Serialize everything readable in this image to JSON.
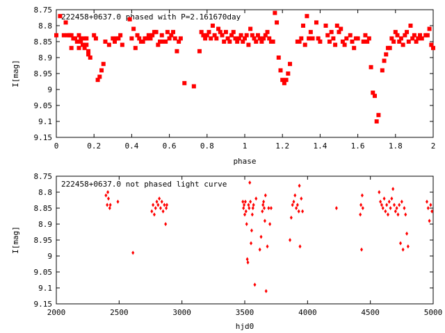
{
  "chart_data": [
    {
      "type": "scatter",
      "title": "222458+0637.0 phased with P=2.161670day",
      "xlabel": "phase",
      "ylabel": "I[mag]",
      "xlim": [
        0,
        2
      ],
      "ylim": [
        9.15,
        8.75
      ],
      "y_inverted": true,
      "xticks": [
        "0",
        "0.2",
        "0.4",
        "0.6",
        "0.8",
        "1",
        "1.2",
        "1.4",
        "1.6",
        "1.8",
        "2"
      ],
      "yticks": [
        "8.75",
        "8.8",
        "8.85",
        "8.9",
        "8.95",
        "9",
        "9.05",
        "9.1",
        "9.15"
      ],
      "grid": false,
      "marker": "filled square",
      "color": "#ff0000",
      "points": [
        [
          0.0,
          8.83
        ],
        [
          0.02,
          8.77
        ],
        [
          0.04,
          8.83
        ],
        [
          0.05,
          8.79
        ],
        [
          0.06,
          8.83
        ],
        [
          0.07,
          8.83
        ],
        [
          0.08,
          8.83
        ],
        [
          0.08,
          8.87
        ],
        [
          0.09,
          8.84
        ],
        [
          0.1,
          8.84
        ],
        [
          0.11,
          8.85
        ],
        [
          0.12,
          8.87
        ],
        [
          0.12,
          8.83
        ],
        [
          0.13,
          8.84
        ],
        [
          0.13,
          8.85
        ],
        [
          0.14,
          8.86
        ],
        [
          0.15,
          8.84
        ],
        [
          0.15,
          8.87
        ],
        [
          0.16,
          8.84
        ],
        [
          0.16,
          8.86
        ],
        [
          0.17,
          8.88
        ],
        [
          0.17,
          8.89
        ],
        [
          0.18,
          8.9
        ],
        [
          0.2,
          8.83
        ],
        [
          0.21,
          8.84
        ],
        [
          0.22,
          8.97
        ],
        [
          0.23,
          8.96
        ],
        [
          0.24,
          8.94
        ],
        [
          0.25,
          8.92
        ],
        [
          0.26,
          8.85
        ],
        [
          0.28,
          8.86
        ],
        [
          0.3,
          8.84
        ],
        [
          0.31,
          8.85
        ],
        [
          0.32,
          8.84
        ],
        [
          0.33,
          8.84
        ],
        [
          0.34,
          8.83
        ],
        [
          0.35,
          8.86
        ],
        [
          0.39,
          8.78
        ],
        [
          0.4,
          8.84
        ],
        [
          0.41,
          8.81
        ],
        [
          0.42,
          8.87
        ],
        [
          0.43,
          8.83
        ],
        [
          0.44,
          8.84
        ],
        [
          0.45,
          8.85
        ],
        [
          0.46,
          8.85
        ],
        [
          0.47,
          8.84
        ],
        [
          0.48,
          8.84
        ],
        [
          0.49,
          8.83
        ],
        [
          0.5,
          8.84
        ],
        [
          0.51,
          8.83
        ],
        [
          0.52,
          8.82
        ],
        [
          0.53,
          8.82
        ],
        [
          0.54,
          8.86
        ],
        [
          0.55,
          8.85
        ],
        [
          0.56,
          8.83
        ],
        [
          0.57,
          8.85
        ],
        [
          0.58,
          8.85
        ],
        [
          0.59,
          8.82
        ],
        [
          0.6,
          8.84
        ],
        [
          0.61,
          8.83
        ],
        [
          0.62,
          8.82
        ],
        [
          0.63,
          8.84
        ],
        [
          0.64,
          8.88
        ],
        [
          0.65,
          8.85
        ],
        [
          0.66,
          8.84
        ],
        [
          0.68,
          8.98
        ],
        [
          0.73,
          8.99
        ],
        [
          0.76,
          8.88
        ],
        [
          0.77,
          8.82
        ],
        [
          0.78,
          8.83
        ],
        [
          0.79,
          8.84
        ],
        [
          0.8,
          8.83
        ],
        [
          0.81,
          8.82
        ],
        [
          0.82,
          8.84
        ],
        [
          0.83,
          8.8
        ],
        [
          0.84,
          8.83
        ],
        [
          0.85,
          8.84
        ],
        [
          0.86,
          8.81
        ],
        [
          0.87,
          8.82
        ],
        [
          0.88,
          8.83
        ],
        [
          0.89,
          8.85
        ],
        [
          0.9,
          8.82
        ],
        [
          0.91,
          8.84
        ],
        [
          0.92,
          8.85
        ],
        [
          0.93,
          8.83
        ],
        [
          0.94,
          8.82
        ],
        [
          0.95,
          8.84
        ],
        [
          0.96,
          8.85
        ],
        [
          0.97,
          8.84
        ],
        [
          0.98,
          8.83
        ],
        [
          0.99,
          8.85
        ],
        [
          1.0,
          8.84
        ],
        [
          1.01,
          8.83
        ],
        [
          1.02,
          8.86
        ],
        [
          1.03,
          8.81
        ],
        [
          1.04,
          8.83
        ],
        [
          1.05,
          8.84
        ],
        [
          1.06,
          8.85
        ],
        [
          1.07,
          8.83
        ],
        [
          1.08,
          8.84
        ],
        [
          1.09,
          8.85
        ],
        [
          1.1,
          8.84
        ],
        [
          1.11,
          8.83
        ],
        [
          1.12,
          8.82
        ],
        [
          1.13,
          8.84
        ],
        [
          1.14,
          8.85
        ],
        [
          1.15,
          8.85
        ],
        [
          1.16,
          8.76
        ],
        [
          1.17,
          8.79
        ],
        [
          1.18,
          8.9
        ],
        [
          1.19,
          8.94
        ],
        [
          1.2,
          8.97
        ],
        [
          1.21,
          8.98
        ],
        [
          1.22,
          8.97
        ],
        [
          1.23,
          8.95
        ],
        [
          1.24,
          8.92
        ],
        [
          1.28,
          8.85
        ],
        [
          1.29,
          8.85
        ],
        [
          1.3,
          8.84
        ],
        [
          1.31,
          8.8
        ],
        [
          1.32,
          8.86
        ],
        [
          1.33,
          8.77
        ],
        [
          1.34,
          8.84
        ],
        [
          1.35,
          8.82
        ],
        [
          1.36,
          8.84
        ],
        [
          1.38,
          8.79
        ],
        [
          1.39,
          8.84
        ],
        [
          1.4,
          8.85
        ],
        [
          1.43,
          8.8
        ],
        [
          1.44,
          8.83
        ],
        [
          1.45,
          8.85
        ],
        [
          1.46,
          8.82
        ],
        [
          1.47,
          8.84
        ],
        [
          1.48,
          8.86
        ],
        [
          1.49,
          8.8
        ],
        [
          1.5,
          8.82
        ],
        [
          1.51,
          8.81
        ],
        [
          1.52,
          8.85
        ],
        [
          1.53,
          8.86
        ],
        [
          1.54,
          8.84
        ],
        [
          1.56,
          8.83
        ],
        [
          1.57,
          8.85
        ],
        [
          1.58,
          8.87
        ],
        [
          1.59,
          8.84
        ],
        [
          1.6,
          8.84
        ],
        [
          1.63,
          8.85
        ],
        [
          1.64,
          8.83
        ],
        [
          1.65,
          8.85
        ],
        [
          1.66,
          8.84
        ],
        [
          1.67,
          8.93
        ],
        [
          1.68,
          9.01
        ],
        [
          1.69,
          9.02
        ],
        [
          1.7,
          9.1
        ],
        [
          1.71,
          9.08
        ],
        [
          1.73,
          8.94
        ],
        [
          1.74,
          8.91
        ],
        [
          1.75,
          8.89
        ],
        [
          1.76,
          8.87
        ],
        [
          1.77,
          8.87
        ],
        [
          1.78,
          8.84
        ],
        [
          1.79,
          8.85
        ],
        [
          1.8,
          8.82
        ],
        [
          1.81,
          8.83
        ],
        [
          1.82,
          8.85
        ],
        [
          1.83,
          8.84
        ],
        [
          1.84,
          8.86
        ],
        [
          1.85,
          8.83
        ],
        [
          1.86,
          8.82
        ],
        [
          1.87,
          8.85
        ],
        [
          1.88,
          8.8
        ],
        [
          1.89,
          8.84
        ],
        [
          1.9,
          8.83
        ],
        [
          1.91,
          8.85
        ],
        [
          1.92,
          8.84
        ],
        [
          1.93,
          8.83
        ],
        [
          1.94,
          8.84
        ],
        [
          1.96,
          8.83
        ],
        [
          1.97,
          8.83
        ],
        [
          1.98,
          8.81
        ],
        [
          1.99,
          8.86
        ],
        [
          2.0,
          8.87
        ]
      ]
    },
    {
      "type": "scatter",
      "title": "222458+0637.0 not phased light curve",
      "xlabel": "hjd0",
      "ylabel": "I[mag]",
      "xlim": [
        2000,
        5000
      ],
      "ylim": [
        9.15,
        8.75
      ],
      "y_inverted": true,
      "xticks": [
        "2000",
        "2500",
        "3000",
        "3500",
        "4000",
        "4500",
        "5000"
      ],
      "yticks": [
        "8.75",
        "8.8",
        "8.85",
        "8.9",
        "8.95",
        "9",
        "9.05",
        "9.1",
        "9.15"
      ],
      "grid": false,
      "marker": "small diamond",
      "color": "#ff0000",
      "points": [
        [
          2395,
          8.81
        ],
        [
          2405,
          8.84
        ],
        [
          2410,
          8.8
        ],
        [
          2415,
          8.82
        ],
        [
          2425,
          8.85
        ],
        [
          2430,
          8.84
        ],
        [
          2490,
          8.83
        ],
        [
          2610,
          8.99
        ],
        [
          2760,
          8.86
        ],
        [
          2770,
          8.84
        ],
        [
          2780,
          8.87
        ],
        [
          2790,
          8.85
        ],
        [
          2800,
          8.83
        ],
        [
          2810,
          8.84
        ],
        [
          2820,
          8.82
        ],
        [
          2830,
          8.85
        ],
        [
          2840,
          8.83
        ],
        [
          2850,
          8.86
        ],
        [
          2860,
          8.84
        ],
        [
          2870,
          8.9
        ],
        [
          2875,
          8.85
        ],
        [
          2880,
          8.84
        ],
        [
          3485,
          8.83
        ],
        [
          3490,
          8.85
        ],
        [
          3495,
          8.84
        ],
        [
          3500,
          8.87
        ],
        [
          3505,
          8.83
        ],
        [
          3510,
          8.86
        ],
        [
          3515,
          8.9
        ],
        [
          3520,
          9.01
        ],
        [
          3525,
          9.02
        ],
        [
          3530,
          8.84
        ],
        [
          3535,
          8.85
        ],
        [
          3540,
          8.77
        ],
        [
          3545,
          8.83
        ],
        [
          3550,
          8.96
        ],
        [
          3555,
          8.92
        ],
        [
          3560,
          8.87
        ],
        [
          3565,
          8.85
        ],
        [
          3570,
          8.84
        ],
        [
          3580,
          9.09
        ],
        [
          3590,
          8.82
        ],
        [
          3620,
          8.98
        ],
        [
          3630,
          8.94
        ],
        [
          3640,
          8.86
        ],
        [
          3645,
          8.84
        ],
        [
          3650,
          8.83
        ],
        [
          3655,
          8.85
        ],
        [
          3660,
          8.89
        ],
        [
          3665,
          8.81
        ],
        [
          3670,
          9.11
        ],
        [
          3680,
          8.97
        ],
        [
          3690,
          8.85
        ],
        [
          3700,
          8.9
        ],
        [
          3710,
          8.85
        ],
        [
          3860,
          8.95
        ],
        [
          3870,
          8.88
        ],
        [
          3880,
          8.84
        ],
        [
          3890,
          8.83
        ],
        [
          3900,
          8.81
        ],
        [
          3910,
          8.85
        ],
        [
          3920,
          8.84
        ],
        [
          3930,
          8.86
        ],
        [
          3935,
          8.78
        ],
        [
          3940,
          8.97
        ],
        [
          3950,
          8.82
        ],
        [
          3960,
          8.86
        ],
        [
          4230,
          8.85
        ],
        [
          4420,
          8.87
        ],
        [
          4425,
          8.84
        ],
        [
          4430,
          8.98
        ],
        [
          4435,
          8.81
        ],
        [
          4440,
          8.85
        ],
        [
          4570,
          8.8
        ],
        [
          4580,
          8.83
        ],
        [
          4590,
          8.84
        ],
        [
          4600,
          8.85
        ],
        [
          4610,
          8.82
        ],
        [
          4620,
          8.86
        ],
        [
          4630,
          8.84
        ],
        [
          4640,
          8.87
        ],
        [
          4650,
          8.83
        ],
        [
          4660,
          8.85
        ],
        [
          4670,
          8.82
        ],
        [
          4680,
          8.79
        ],
        [
          4690,
          8.84
        ],
        [
          4700,
          8.86
        ],
        [
          4710,
          8.85
        ],
        [
          4720,
          8.87
        ],
        [
          4730,
          8.84
        ],
        [
          4740,
          8.96
        ],
        [
          4750,
          8.83
        ],
        [
          4760,
          8.98
        ],
        [
          4770,
          8.85
        ],
        [
          4780,
          8.87
        ],
        [
          4790,
          8.93
        ],
        [
          4800,
          8.97
        ],
        [
          4950,
          8.83
        ],
        [
          4960,
          8.85
        ],
        [
          4970,
          8.89
        ],
        [
          4980,
          8.84
        ],
        [
          4990,
          8.86
        ]
      ]
    }
  ]
}
